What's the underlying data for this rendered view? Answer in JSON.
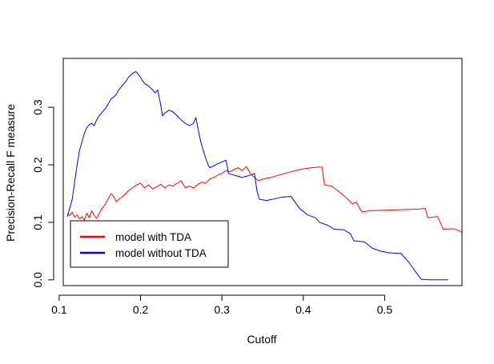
{
  "chart_data": {
    "type": "line",
    "title": "",
    "xlabel": "Cutoff",
    "ylabel": "Precision-Recall F measure",
    "xlim": [
      0.105,
      0.595
    ],
    "ylim": [
      -0.01,
      0.385
    ],
    "x_ticks": [
      0.1,
      0.2,
      0.3,
      0.4,
      0.5
    ],
    "x_tick_labels": [
      "0.1",
      "0.2",
      "0.3",
      "0.4",
      "0.5"
    ],
    "y_ticks": [
      0.0,
      0.1,
      0.2,
      0.3
    ],
    "y_tick_labels": [
      "0.0",
      "0.1",
      "0.2",
      "0.3"
    ],
    "grid": false,
    "legend_position": "bottom-left",
    "series": [
      {
        "name": "model with TDA",
        "color": "#ff0000",
        "points": [
          [
            0.11,
            0.115
          ],
          [
            0.113,
            0.112
          ],
          [
            0.116,
            0.118
          ],
          [
            0.119,
            0.109
          ],
          [
            0.122,
            0.113
          ],
          [
            0.125,
            0.106
          ],
          [
            0.128,
            0.11
          ],
          [
            0.131,
            0.104
          ],
          [
            0.134,
            0.116
          ],
          [
            0.137,
            0.108
          ],
          [
            0.14,
            0.12
          ],
          [
            0.143,
            0.112
          ],
          [
            0.146,
            0.107
          ],
          [
            0.149,
            0.115
          ],
          [
            0.152,
            0.123
          ],
          [
            0.155,
            0.128
          ],
          [
            0.158,
            0.135
          ],
          [
            0.161,
            0.143
          ],
          [
            0.164,
            0.15
          ],
          [
            0.167,
            0.145
          ],
          [
            0.17,
            0.136
          ],
          [
            0.175,
            0.142
          ],
          [
            0.18,
            0.147
          ],
          [
            0.185,
            0.155
          ],
          [
            0.19,
            0.16
          ],
          [
            0.195,
            0.165
          ],
          [
            0.2,
            0.168
          ],
          [
            0.205,
            0.16
          ],
          [
            0.21,
            0.165
          ],
          [
            0.215,
            0.158
          ],
          [
            0.22,
            0.162
          ],
          [
            0.225,
            0.166
          ],
          [
            0.23,
            0.16
          ],
          [
            0.235,
            0.165
          ],
          [
            0.24,
            0.163
          ],
          [
            0.245,
            0.168
          ],
          [
            0.25,
            0.172
          ],
          [
            0.255,
            0.16
          ],
          [
            0.26,
            0.163
          ],
          [
            0.265,
            0.16
          ],
          [
            0.27,
            0.165
          ],
          [
            0.275,
            0.17
          ],
          [
            0.28,
            0.168
          ],
          [
            0.285,
            0.175
          ],
          [
            0.29,
            0.178
          ],
          [
            0.295,
            0.182
          ],
          [
            0.3,
            0.185
          ],
          [
            0.305,
            0.19
          ],
          [
            0.31,
            0.188
          ],
          [
            0.315,
            0.192
          ],
          [
            0.32,
            0.195
          ],
          [
            0.325,
            0.19
          ],
          [
            0.33,
            0.197
          ],
          [
            0.335,
            0.185
          ],
          [
            0.34,
            0.178
          ],
          [
            0.345,
            0.172
          ],
          [
            0.35,
            0.175
          ],
          [
            0.36,
            0.178
          ],
          [
            0.37,
            0.182
          ],
          [
            0.38,
            0.186
          ],
          [
            0.39,
            0.19
          ],
          [
            0.4,
            0.193
          ],
          [
            0.41,
            0.195
          ],
          [
            0.42,
            0.196
          ],
          [
            0.423,
            0.196
          ],
          [
            0.426,
            0.165
          ],
          [
            0.435,
            0.163
          ],
          [
            0.445,
            0.152
          ],
          [
            0.455,
            0.14
          ],
          [
            0.46,
            0.132
          ],
          [
            0.465,
            0.135
          ],
          [
            0.472,
            0.118
          ],
          [
            0.48,
            0.12
          ],
          [
            0.5,
            0.121
          ],
          [
            0.52,
            0.122
          ],
          [
            0.54,
            0.123
          ],
          [
            0.55,
            0.124
          ],
          [
            0.553,
            0.108
          ],
          [
            0.565,
            0.11
          ],
          [
            0.572,
            0.088
          ],
          [
            0.585,
            0.089
          ],
          [
            0.595,
            0.083
          ]
        ]
      },
      {
        "name": "model without TDA",
        "color": "#0000ff",
        "points": [
          [
            0.11,
            0.11
          ],
          [
            0.113,
            0.125
          ],
          [
            0.116,
            0.14
          ],
          [
            0.119,
            0.17
          ],
          [
            0.122,
            0.2
          ],
          [
            0.125,
            0.225
          ],
          [
            0.128,
            0.24
          ],
          [
            0.131,
            0.255
          ],
          [
            0.134,
            0.265
          ],
          [
            0.137,
            0.27
          ],
          [
            0.14,
            0.272
          ],
          [
            0.143,
            0.268
          ],
          [
            0.146,
            0.278
          ],
          [
            0.149,
            0.285
          ],
          [
            0.152,
            0.29
          ],
          [
            0.155,
            0.295
          ],
          [
            0.158,
            0.3
          ],
          [
            0.161,
            0.308
          ],
          [
            0.164,
            0.315
          ],
          [
            0.167,
            0.318
          ],
          [
            0.17,
            0.322
          ],
          [
            0.173,
            0.33
          ],
          [
            0.176,
            0.335
          ],
          [
            0.179,
            0.34
          ],
          [
            0.182,
            0.345
          ],
          [
            0.185,
            0.352
          ],
          [
            0.188,
            0.356
          ],
          [
            0.191,
            0.36
          ],
          [
            0.194,
            0.362
          ],
          [
            0.197,
            0.358
          ],
          [
            0.2,
            0.352
          ],
          [
            0.203,
            0.345
          ],
          [
            0.206,
            0.34
          ],
          [
            0.209,
            0.338
          ],
          [
            0.212,
            0.334
          ],
          [
            0.215,
            0.33
          ],
          [
            0.218,
            0.325
          ],
          [
            0.221,
            0.33
          ],
          [
            0.224,
            0.31
          ],
          [
            0.227,
            0.285
          ],
          [
            0.23,
            0.29
          ],
          [
            0.235,
            0.295
          ],
          [
            0.24,
            0.292
          ],
          [
            0.245,
            0.285
          ],
          [
            0.25,
            0.278
          ],
          [
            0.255,
            0.272
          ],
          [
            0.26,
            0.268
          ],
          [
            0.265,
            0.272
          ],
          [
            0.268,
            0.282
          ],
          [
            0.271,
            0.26
          ],
          [
            0.274,
            0.24
          ],
          [
            0.277,
            0.225
          ],
          [
            0.28,
            0.212
          ],
          [
            0.283,
            0.2
          ],
          [
            0.285,
            0.195
          ],
          [
            0.29,
            0.198
          ],
          [
            0.295,
            0.202
          ],
          [
            0.3,
            0.205
          ],
          [
            0.305,
            0.208
          ],
          [
            0.308,
            0.185
          ],
          [
            0.315,
            0.182
          ],
          [
            0.32,
            0.18
          ],
          [
            0.325,
            0.178
          ],
          [
            0.33,
            0.18
          ],
          [
            0.335,
            0.182
          ],
          [
            0.34,
            0.185
          ],
          [
            0.343,
            0.155
          ],
          [
            0.346,
            0.14
          ],
          [
            0.355,
            0.138
          ],
          [
            0.365,
            0.141
          ],
          [
            0.375,
            0.144
          ],
          [
            0.385,
            0.145
          ],
          [
            0.395,
            0.125
          ],
          [
            0.405,
            0.113
          ],
          [
            0.415,
            0.108
          ],
          [
            0.42,
            0.1
          ],
          [
            0.43,
            0.095
          ],
          [
            0.438,
            0.088
          ],
          [
            0.45,
            0.087
          ],
          [
            0.458,
            0.08
          ],
          [
            0.462,
            0.068
          ],
          [
            0.475,
            0.066
          ],
          [
            0.485,
            0.055
          ],
          [
            0.495,
            0.05
          ],
          [
            0.505,
            0.047
          ],
          [
            0.52,
            0.046
          ],
          [
            0.53,
            0.03
          ],
          [
            0.54,
            0.01
          ],
          [
            0.545,
            0.001
          ],
          [
            0.555,
            0.0
          ],
          [
            0.578,
            0.0
          ]
        ]
      }
    ]
  }
}
